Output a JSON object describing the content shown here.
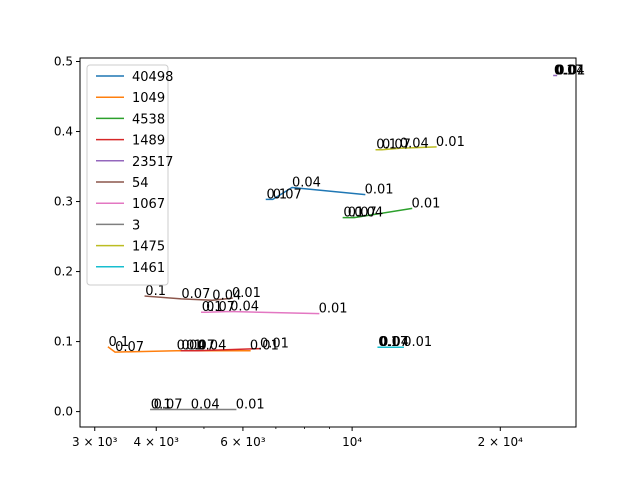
{
  "chart_data": {
    "type": "line",
    "title": "",
    "xlabel": "",
    "ylabel": "",
    "xscale": "log",
    "xlim": [
      2800,
      28500
    ],
    "ylim": [
      -0.022,
      0.505
    ],
    "x_ticks": [
      {
        "value": 3000,
        "label": "3 × 10³"
      },
      {
        "value": 4000,
        "label": "4 × 10³"
      },
      {
        "value": 6000,
        "label": "6 × 10³"
      },
      {
        "value": 10000,
        "label": "10⁴"
      },
      {
        "value": 20000,
        "label": "2 × 10⁴"
      }
    ],
    "x_minor_ticks": [
      5000,
      7000,
      8000,
      9000
    ],
    "y_ticks": [
      {
        "value": 0.0,
        "label": "0.0"
      },
      {
        "value": 0.1,
        "label": "0.1"
      },
      {
        "value": 0.2,
        "label": "0.2"
      },
      {
        "value": 0.3,
        "label": "0.3"
      },
      {
        "value": 0.4,
        "label": "0.4"
      },
      {
        "value": 0.5,
        "label": "0.5"
      }
    ],
    "grid": false,
    "legend_position": "upper left",
    "series": [
      {
        "name": "40498",
        "color": "#1f77b4",
        "points": [
          {
            "x": 6700,
            "y": 0.303,
            "label": "0.1"
          },
          {
            "x": 6900,
            "y": 0.303,
            "label": "0.07"
          },
          {
            "x": 7550,
            "y": 0.32,
            "label": "0.04"
          },
          {
            "x": 10600,
            "y": 0.31,
            "label": "0.01"
          }
        ]
      },
      {
        "name": "1049",
        "color": "#ff7f0e",
        "points": [
          {
            "x": 3200,
            "y": 0.092,
            "label": "0.1"
          },
          {
            "x": 3300,
            "y": 0.085,
            "label": "0.07"
          },
          {
            "x": 4400,
            "y": 0.087,
            "label": "0.04"
          },
          {
            "x": 6200,
            "y": 0.087,
            "label": "0.01"
          }
        ]
      },
      {
        "name": "4538",
        "color": "#2ca02c",
        "points": [
          {
            "x": 9600,
            "y": 0.277,
            "label": "0.1"
          },
          {
            "x": 9800,
            "y": 0.277,
            "label": "0.07"
          },
          {
            "x": 10100,
            "y": 0.277,
            "label": "0.04"
          },
          {
            "x": 13200,
            "y": 0.29,
            "label": "0.01"
          }
        ]
      },
      {
        "name": "1489",
        "color": "#d62728",
        "points": [
          {
            "x": 4500,
            "y": 0.087,
            "label": "0.1"
          },
          {
            "x": 4600,
            "y": 0.087,
            "label": "0.07"
          },
          {
            "x": 4850,
            "y": 0.087,
            "label": "0.04"
          },
          {
            "x": 6500,
            "y": 0.09,
            "label": "0.01"
          }
        ]
      },
      {
        "name": "23517",
        "color": "#9467bd",
        "points": [
          {
            "x": 25700,
            "y": 0.48,
            "label": "0.1"
          },
          {
            "x": 25800,
            "y": 0.48,
            "label": "0.07"
          },
          {
            "x": 25900,
            "y": 0.48,
            "label": "0.04"
          },
          {
            "x": 26000,
            "y": 0.48,
            "label": "0.01"
          }
        ]
      },
      {
        "name": "54",
        "color": "#8c564b",
        "points": [
          {
            "x": 3800,
            "y": 0.165,
            "label": "0.1"
          },
          {
            "x": 4500,
            "y": 0.161,
            "label": "0.07"
          },
          {
            "x": 5200,
            "y": 0.159,
            "label": "0.04"
          },
          {
            "x": 5700,
            "y": 0.162,
            "label": "0.01"
          }
        ]
      },
      {
        "name": "1067",
        "color": "#e377c2",
        "points": [
          {
            "x": 4950,
            "y": 0.142,
            "label": "0.1"
          },
          {
            "x": 5050,
            "y": 0.142,
            "label": "0.07"
          },
          {
            "x": 5650,
            "y": 0.143,
            "label": "0.04"
          },
          {
            "x": 8550,
            "y": 0.14,
            "label": "0.01"
          }
        ]
      },
      {
        "name": "3",
        "color": "#7f7f7f",
        "points": [
          {
            "x": 3900,
            "y": 0.003,
            "label": "0.1"
          },
          {
            "x": 3950,
            "y": 0.003,
            "label": "0.07"
          },
          {
            "x": 4700,
            "y": 0.003,
            "label": "0.04"
          },
          {
            "x": 5800,
            "y": 0.003,
            "label": "0.01"
          }
        ]
      },
      {
        "name": "1475",
        "color": "#bcbd22",
        "points": [
          {
            "x": 11200,
            "y": 0.374,
            "label": "0.1"
          },
          {
            "x": 11500,
            "y": 0.374,
            "label": "0.07"
          },
          {
            "x": 12500,
            "y": 0.376,
            "label": "0.04"
          },
          {
            "x": 14800,
            "y": 0.378,
            "label": "0.01"
          }
        ]
      },
      {
        "name": "1461",
        "color": "#17becf",
        "points": [
          {
            "x": 11300,
            "y": 0.092,
            "label": "0.1"
          },
          {
            "x": 11350,
            "y": 0.092,
            "label": "0.07"
          },
          {
            "x": 11400,
            "y": 0.092,
            "label": "0.04"
          },
          {
            "x": 12700,
            "y": 0.092,
            "label": "0.01"
          }
        ]
      }
    ]
  }
}
